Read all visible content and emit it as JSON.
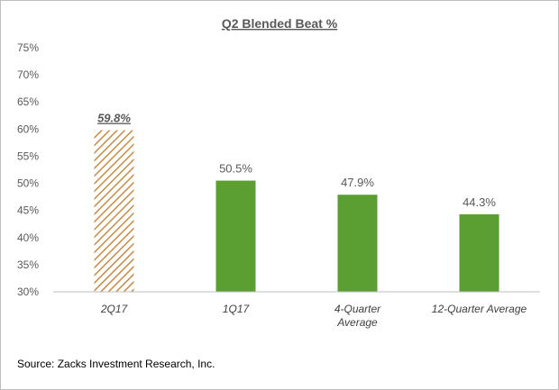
{
  "chart_data": {
    "type": "bar",
    "title": "Q2 Blended  Beat %",
    "categories": [
      "2Q17",
      "1Q17",
      "4-Quarter Average",
      "12-Quarter Average"
    ],
    "category_lines": [
      [
        "2Q17"
      ],
      [
        "1Q17"
      ],
      [
        "4-Quarter",
        "Average"
      ],
      [
        "12-Quarter Average"
      ]
    ],
    "values": [
      59.8,
      50.5,
      47.9,
      44.3
    ],
    "data_labels": [
      "59.8%",
      "50.5%",
      "47.9%",
      "44.3%"
    ],
    "highlight_index": 0,
    "ylim": [
      30,
      75
    ],
    "yticks": [
      30,
      35,
      40,
      45,
      50,
      55,
      60,
      65,
      70,
      75
    ],
    "ytick_labels": [
      "30%",
      "35%",
      "40%",
      "45%",
      "50%",
      "55%",
      "60%",
      "65%",
      "70%",
      "75%"
    ],
    "xlabel": "",
    "ylabel": "",
    "grid": false,
    "legend": "none",
    "colors": {
      "bar": "#5b9e32",
      "highlight_stripe": "#c98a45",
      "axis": "#bfbfbf",
      "frame": "#bfbfbf"
    }
  },
  "source": "Source: Zacks Investment Research, Inc."
}
